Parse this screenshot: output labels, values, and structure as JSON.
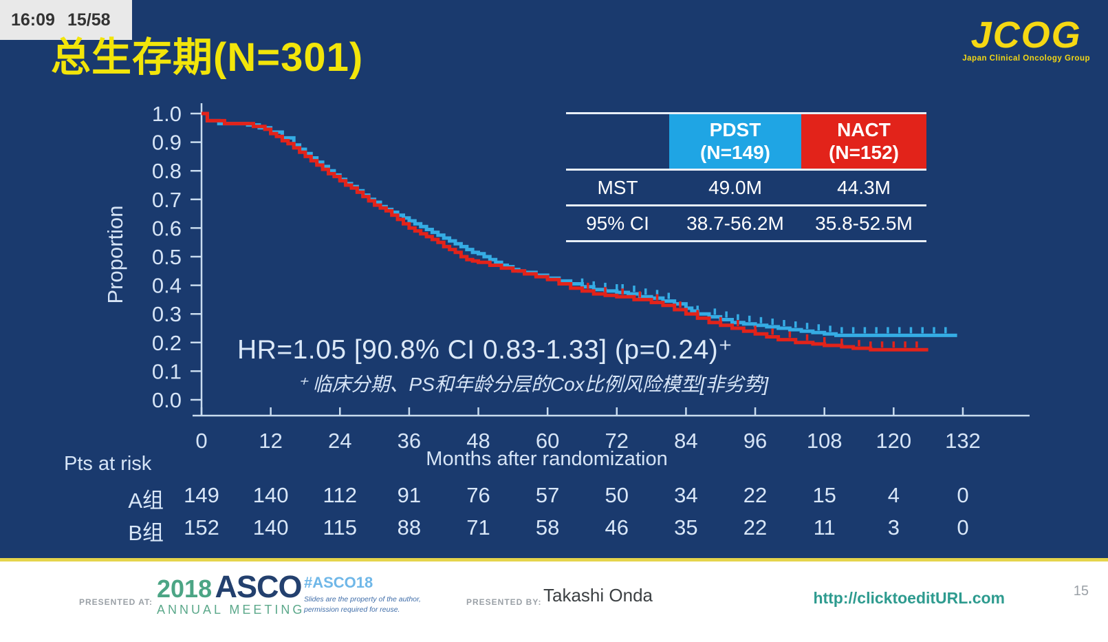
{
  "meta": {
    "timestamp": "16:09",
    "slide_counter": "15/58"
  },
  "header": {
    "title": "总生存期(N=301)",
    "logo_text": "JCOG",
    "logo_subtitle": "Japan Clinical Oncology Group"
  },
  "stats_table": {
    "columns": [
      {
        "label": "PDST\n(N=149)",
        "color": "#1FA5E4"
      },
      {
        "label": "NACT\n(N=152)",
        "color": "#E2231A"
      }
    ],
    "rows": [
      {
        "label": "MST",
        "values": [
          "49.0M",
          "44.3M"
        ]
      },
      {
        "label": "95% CI",
        "values": [
          "38.7-56.2M",
          "35.8-52.5M"
        ]
      }
    ]
  },
  "annotation": {
    "hr_text": "HR=1.05 [90.8% CI 0.83-1.33] (p=0.24)⁺",
    "footnote": "⁺ 临床分期、PS和年龄分层的Cox比例风险模型[非劣势]"
  },
  "chart_data": {
    "type": "line",
    "subtype": "kaplan-meier-step",
    "title": "Overall survival (N=301)",
    "xlabel": "Months after randomization",
    "ylabel": "Proportion",
    "xlim": [
      0,
      132
    ],
    "ylim": [
      0.0,
      1.0
    ],
    "xticks": [
      0,
      12,
      24,
      36,
      48,
      60,
      72,
      84,
      96,
      108,
      120,
      132
    ],
    "yticks": [
      0.0,
      0.1,
      0.2,
      0.3,
      0.4,
      0.5,
      0.6,
      0.7,
      0.8,
      0.9,
      1.0
    ],
    "grid": false,
    "legend_position": "table-top-right",
    "series": [
      {
        "name": "PDST",
        "color": "#35ACE4",
        "median_survival_months": 49.0,
        "steps": [
          [
            0,
            1.0
          ],
          [
            1,
            0.975
          ],
          [
            3,
            0.965
          ],
          [
            8,
            0.96
          ],
          [
            10,
            0.95
          ],
          [
            12,
            0.935
          ],
          [
            14,
            0.915
          ],
          [
            16,
            0.89
          ],
          [
            17,
            0.875
          ],
          [
            18,
            0.86
          ],
          [
            19,
            0.845
          ],
          [
            20,
            0.83
          ],
          [
            21,
            0.815
          ],
          [
            22,
            0.8
          ],
          [
            23,
            0.785
          ],
          [
            24,
            0.77
          ],
          [
            25,
            0.755
          ],
          [
            26,
            0.745
          ],
          [
            27,
            0.73
          ],
          [
            28,
            0.715
          ],
          [
            29,
            0.7
          ],
          [
            30,
            0.69
          ],
          [
            31,
            0.675
          ],
          [
            32,
            0.665
          ],
          [
            33,
            0.655
          ],
          [
            34,
            0.645
          ],
          [
            35,
            0.635
          ],
          [
            36,
            0.625
          ],
          [
            37,
            0.615
          ],
          [
            38,
            0.605
          ],
          [
            39,
            0.595
          ],
          [
            40,
            0.585
          ],
          [
            41,
            0.575
          ],
          [
            42,
            0.565
          ],
          [
            43,
            0.555
          ],
          [
            44,
            0.545
          ],
          [
            45,
            0.535
          ],
          [
            46,
            0.525
          ],
          [
            47,
            0.515
          ],
          [
            48,
            0.51
          ],
          [
            49,
            0.5
          ],
          [
            50,
            0.49
          ],
          [
            51,
            0.48
          ],
          [
            52,
            0.47
          ],
          [
            53,
            0.465
          ],
          [
            54,
            0.455
          ],
          [
            55,
            0.45
          ],
          [
            56,
            0.445
          ],
          [
            58,
            0.435
          ],
          [
            60,
            0.425
          ],
          [
            62,
            0.415
          ],
          [
            64,
            0.405
          ],
          [
            66,
            0.395
          ],
          [
            68,
            0.385
          ],
          [
            70,
            0.38
          ],
          [
            72,
            0.375
          ],
          [
            74,
            0.37
          ],
          [
            76,
            0.36
          ],
          [
            78,
            0.355
          ],
          [
            80,
            0.345
          ],
          [
            82,
            0.335
          ],
          [
            84,
            0.32
          ],
          [
            85,
            0.31
          ],
          [
            86,
            0.3
          ],
          [
            88,
            0.29
          ],
          [
            90,
            0.28
          ],
          [
            92,
            0.27
          ],
          [
            94,
            0.265
          ],
          [
            96,
            0.26
          ],
          [
            98,
            0.255
          ],
          [
            100,
            0.25
          ],
          [
            102,
            0.245
          ],
          [
            104,
            0.24
          ],
          [
            106,
            0.235
          ],
          [
            108,
            0.23
          ],
          [
            110,
            0.225
          ],
          [
            131,
            0.225
          ]
        ],
        "censor_marks": [
          66,
          68,
          70,
          72,
          73,
          75,
          77,
          79,
          81,
          86,
          89,
          91,
          93,
          95,
          97,
          99,
          101,
          103,
          105,
          107,
          109,
          111,
          113,
          115,
          117,
          119,
          121,
          123,
          125,
          127,
          129
        ]
      },
      {
        "name": "NACT",
        "color": "#E2231A",
        "median_survival_months": 44.3,
        "steps": [
          [
            0,
            1.0
          ],
          [
            1,
            0.975
          ],
          [
            4,
            0.965
          ],
          [
            9,
            0.955
          ],
          [
            11,
            0.945
          ],
          [
            12,
            0.93
          ],
          [
            13,
            0.92
          ],
          [
            14,
            0.905
          ],
          [
            15,
            0.895
          ],
          [
            16,
            0.88
          ],
          [
            17,
            0.865
          ],
          [
            18,
            0.85
          ],
          [
            19,
            0.835
          ],
          [
            20,
            0.82
          ],
          [
            21,
            0.805
          ],
          [
            22,
            0.79
          ],
          [
            23,
            0.78
          ],
          [
            24,
            0.765
          ],
          [
            25,
            0.75
          ],
          [
            26,
            0.74
          ],
          [
            27,
            0.725
          ],
          [
            28,
            0.71
          ],
          [
            29,
            0.695
          ],
          [
            30,
            0.68
          ],
          [
            31,
            0.67
          ],
          [
            32,
            0.66
          ],
          [
            33,
            0.645
          ],
          [
            34,
            0.63
          ],
          [
            35,
            0.615
          ],
          [
            36,
            0.6
          ],
          [
            37,
            0.59
          ],
          [
            38,
            0.58
          ],
          [
            39,
            0.57
          ],
          [
            40,
            0.56
          ],
          [
            41,
            0.55
          ],
          [
            42,
            0.535
          ],
          [
            43,
            0.525
          ],
          [
            44,
            0.515
          ],
          [
            45,
            0.5
          ],
          [
            46,
            0.49
          ],
          [
            47,
            0.485
          ],
          [
            48,
            0.48
          ],
          [
            50,
            0.47
          ],
          [
            52,
            0.46
          ],
          [
            54,
            0.45
          ],
          [
            56,
            0.44
          ],
          [
            58,
            0.43
          ],
          [
            60,
            0.42
          ],
          [
            62,
            0.405
          ],
          [
            64,
            0.39
          ],
          [
            66,
            0.38
          ],
          [
            68,
            0.37
          ],
          [
            70,
            0.365
          ],
          [
            72,
            0.36
          ],
          [
            75,
            0.35
          ],
          [
            78,
            0.34
          ],
          [
            80,
            0.33
          ],
          [
            82,
            0.315
          ],
          [
            84,
            0.3
          ],
          [
            86,
            0.285
          ],
          [
            88,
            0.27
          ],
          [
            90,
            0.26
          ],
          [
            92,
            0.25
          ],
          [
            94,
            0.24
          ],
          [
            96,
            0.23
          ],
          [
            98,
            0.22
          ],
          [
            100,
            0.21
          ],
          [
            103,
            0.2
          ],
          [
            106,
            0.195
          ],
          [
            108,
            0.19
          ],
          [
            111,
            0.185
          ],
          [
            113,
            0.18
          ],
          [
            116,
            0.175
          ],
          [
            126,
            0.175
          ]
        ],
        "censor_marks": [
          67,
          70,
          73,
          76,
          79,
          83,
          86,
          90,
          93,
          96,
          99,
          102,
          105,
          108,
          111,
          114,
          116,
          118,
          120,
          122,
          124
        ]
      }
    ]
  },
  "pts_at_risk": {
    "title": "Pts at risk",
    "rows": [
      {
        "label": "A组",
        "values": [
          149,
          140,
          112,
          91,
          76,
          57,
          50,
          34,
          22,
          15,
          4,
          0
        ]
      },
      {
        "label": "B组",
        "values": [
          152,
          140,
          115,
          88,
          71,
          58,
          46,
          35,
          22,
          11,
          3,
          0
        ]
      }
    ]
  },
  "footer": {
    "presented_at_label": "PRESENTED AT:",
    "asco_year": "2018",
    "asco_name": "ASCO",
    "asco_subtitle": "ANNUAL MEETING",
    "hashtag": "#ASCO18",
    "disclaimer": "Slides are the property of the author,\npermission required for reuse.",
    "presented_by_label": "PRESENTED BY:",
    "presenter": "Takashi Onda",
    "url": "http://clicktoeditURL.com",
    "page_number": "15"
  }
}
